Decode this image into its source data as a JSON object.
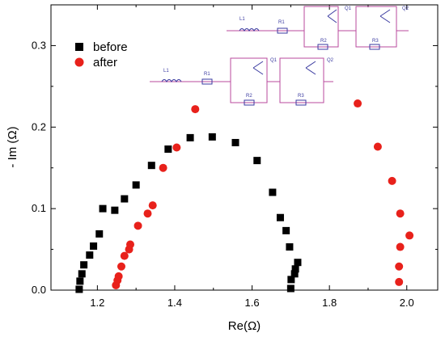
{
  "chart_data": {
    "type": "scatter",
    "xlabel": "Re(Ω)",
    "ylabel": "- Im (Ω)",
    "xlim": [
      1.08,
      2.08
    ],
    "ylim": [
      0.0,
      0.35
    ],
    "xticks": [
      "1.2",
      "1.4",
      "1.6",
      "1.8",
      "2.0"
    ],
    "xtick_values": [
      1.2,
      1.4,
      1.6,
      1.8,
      2.0
    ],
    "yticks": [
      "0.0",
      "0.1",
      "0.2",
      "0.3"
    ],
    "ytick_values": [
      0.0,
      0.1,
      0.2,
      0.3
    ],
    "grid": false,
    "legend_position": "top-left",
    "series": [
      {
        "name": "before",
        "marker": "square",
        "color": "#000000",
        "points": [
          [
            1.153,
            0.001
          ],
          [
            1.155,
            0.011
          ],
          [
            1.16,
            0.02
          ],
          [
            1.165,
            0.031
          ],
          [
            1.18,
            0.043
          ],
          [
            1.19,
            0.054
          ],
          [
            1.205,
            0.069
          ],
          [
            1.214,
            0.1
          ],
          [
            1.245,
            0.098
          ],
          [
            1.27,
            0.112
          ],
          [
            1.3,
            0.129
          ],
          [
            1.34,
            0.153
          ],
          [
            1.383,
            0.173
          ],
          [
            1.44,
            0.187
          ],
          [
            1.497,
            0.188
          ],
          [
            1.557,
            0.181
          ],
          [
            1.613,
            0.159
          ],
          [
            1.653,
            0.12
          ],
          [
            1.673,
            0.089
          ],
          [
            1.688,
            0.073
          ],
          [
            1.697,
            0.053
          ],
          [
            1.701,
            0.013
          ],
          [
            1.7,
            0.002
          ],
          [
            1.71,
            0.02
          ],
          [
            1.712,
            0.026
          ],
          [
            1.718,
            0.034
          ]
        ]
      },
      {
        "name": "after",
        "marker": "circle",
        "color": "#e8211b",
        "points": [
          [
            1.248,
            0.006
          ],
          [
            1.252,
            0.012
          ],
          [
            1.255,
            0.017
          ],
          [
            1.262,
            0.029
          ],
          [
            1.27,
            0.042
          ],
          [
            1.282,
            0.05
          ],
          [
            1.285,
            0.056
          ],
          [
            1.305,
            0.079
          ],
          [
            1.33,
            0.094
          ],
          [
            1.343,
            0.104
          ],
          [
            1.37,
            0.15
          ],
          [
            1.405,
            0.175
          ],
          [
            1.453,
            0.222
          ],
          [
            1.873,
            0.229
          ],
          [
            1.925,
            0.176
          ],
          [
            1.962,
            0.134
          ],
          [
            1.983,
            0.094
          ],
          [
            1.983,
            0.053
          ],
          [
            2.007,
            0.067
          ],
          [
            1.98,
            0.029
          ],
          [
            1.98,
            0.01
          ]
        ]
      }
    ]
  },
  "circuits": [
    {
      "inductor": "L1",
      "resistor": "R1",
      "transistor1": "Q1",
      "transistor2": "Q2",
      "resistor2": "R2",
      "resistor3": "R3"
    },
    {
      "inductor": "L1",
      "resistor": "R1",
      "transistor1": "Q1",
      "transistor2": "Q2",
      "resistor2": "R2",
      "resistor3": "R3"
    }
  ]
}
